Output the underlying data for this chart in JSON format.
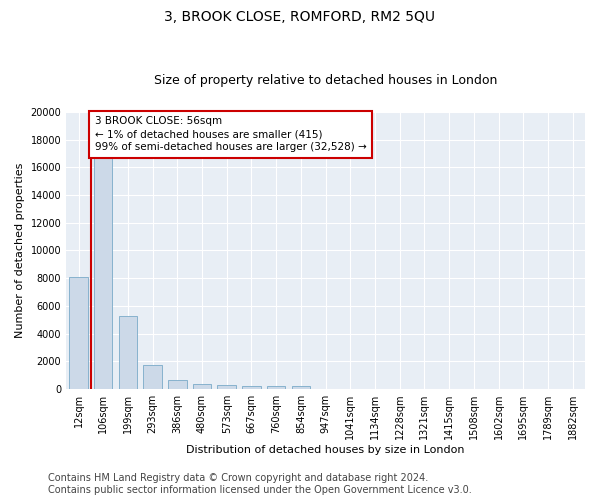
{
  "title": "3, BROOK CLOSE, ROMFORD, RM2 5QU",
  "subtitle": "Size of property relative to detached houses in London",
  "xlabel": "Distribution of detached houses by size in London",
  "ylabel": "Number of detached properties",
  "bar_color": "#ccd9e8",
  "bar_edge_color": "#7aaac8",
  "annotation_line_color": "#cc0000",
  "annotation_box_color": "#cc0000",
  "annotation_line1": "3 BROOK CLOSE: 56sqm",
  "annotation_line2": "← 1% of detached houses are smaller (415)",
  "annotation_line3": "99% of semi-detached houses are larger (32,528) →",
  "categories": [
    "12sqm",
    "106sqm",
    "199sqm",
    "293sqm",
    "386sqm",
    "480sqm",
    "573sqm",
    "667sqm",
    "760sqm",
    "854sqm",
    "947sqm",
    "1041sqm",
    "1134sqm",
    "1228sqm",
    "1321sqm",
    "1415sqm",
    "1508sqm",
    "1602sqm",
    "1695sqm",
    "1789sqm",
    "1882sqm"
  ],
  "values": [
    8100,
    16700,
    5300,
    1750,
    650,
    350,
    270,
    220,
    200,
    190,
    0,
    0,
    0,
    0,
    0,
    0,
    0,
    0,
    0,
    0,
    0
  ],
  "ylim": [
    0,
    20000
  ],
  "yticks": [
    0,
    2000,
    4000,
    6000,
    8000,
    10000,
    12000,
    14000,
    16000,
    18000,
    20000
  ],
  "footer_line1": "Contains HM Land Registry data © Crown copyright and database right 2024.",
  "footer_line2": "Contains public sector information licensed under the Open Government Licence v3.0.",
  "plot_bg_color": "#e8eef5",
  "title_fontsize": 10,
  "subtitle_fontsize": 9,
  "axis_label_fontsize": 8,
  "tick_fontsize": 7,
  "footer_fontsize": 7,
  "annot_fontsize": 7.5
}
